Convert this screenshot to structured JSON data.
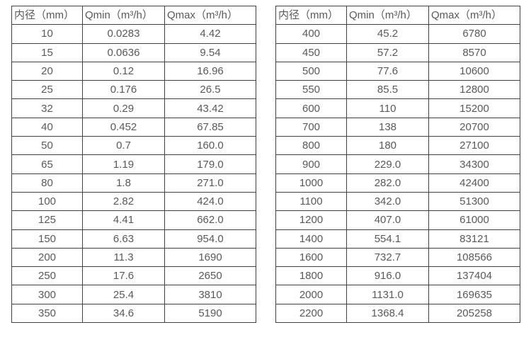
{
  "colors": {
    "border": "#3f4347",
    "text": "#595959",
    "background": "#ffffff"
  },
  "tables": [
    {
      "name": "flow-table-small-diameter",
      "headers": [
        "内径（mm）",
        "Qmin（m³/h）",
        "Qmax（m³/h）"
      ],
      "rows": [
        [
          "10",
          "0.0283",
          "4.42"
        ],
        [
          "15",
          "0.0636",
          "9.54"
        ],
        [
          "20",
          "0.12",
          "16.96"
        ],
        [
          "25",
          "0.176",
          "26.5"
        ],
        [
          "32",
          "0.29",
          "43.42"
        ],
        [
          "40",
          "0.452",
          "67.85"
        ],
        [
          "50",
          "0.7",
          "160.0"
        ],
        [
          "65",
          "1.19",
          "179.0"
        ],
        [
          "80",
          "1.8",
          "271.0"
        ],
        [
          "100",
          "2.82",
          "424.0"
        ],
        [
          "125",
          "4.41",
          "662.0"
        ],
        [
          "150",
          "6.63",
          "954.0"
        ],
        [
          "200",
          "11.3",
          "1690"
        ],
        [
          "250",
          "17.6",
          "2650"
        ],
        [
          "300",
          "25.4",
          "3810"
        ],
        [
          "350",
          "34.6",
          "5190"
        ]
      ]
    },
    {
      "name": "flow-table-large-diameter",
      "headers": [
        "内径（mm）",
        "Qmin（m³/h）",
        "Qmax（m³/h）"
      ],
      "rows": [
        [
          "400",
          "45.2",
          "6780"
        ],
        [
          "450",
          "57.2",
          "8570"
        ],
        [
          "500",
          "77.6",
          "10600"
        ],
        [
          "550",
          "85.5",
          "12800"
        ],
        [
          "600",
          "110",
          "15200"
        ],
        [
          "700",
          "138",
          "20700"
        ],
        [
          "800",
          "180",
          "27100"
        ],
        [
          "900",
          "229.0",
          "34300"
        ],
        [
          "1000",
          "282.0",
          "42400"
        ],
        [
          "1100",
          "342.0",
          "51300"
        ],
        [
          "1200",
          "407.0",
          "61000"
        ],
        [
          "1400",
          "554.1",
          "83121"
        ],
        [
          "1600",
          "732.7",
          "108566"
        ],
        [
          "1800",
          "916.0",
          "137404"
        ],
        [
          "2000",
          "1131.0",
          "169635"
        ],
        [
          "2200",
          "1368.4",
          "205258"
        ]
      ]
    }
  ]
}
